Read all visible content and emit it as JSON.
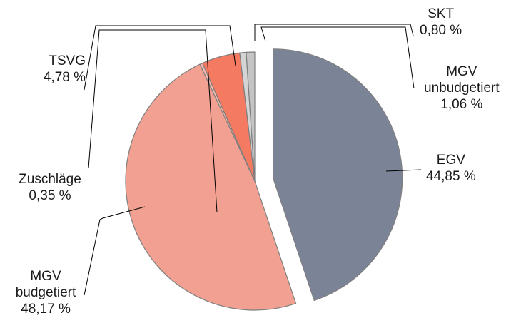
{
  "chart_data": {
    "type": "pie",
    "title": "",
    "series": [
      {
        "name": "EGV",
        "label": "EGV",
        "value": 44.85,
        "value_text": "44,85 %",
        "color": "#7b8497",
        "exploded": true
      },
      {
        "name": "MGV budgetiert",
        "label_lines": [
          "MGV",
          "budgetiert"
        ],
        "value": 48.17,
        "value_text": "48,17 %",
        "color": "#f2a091",
        "exploded": false
      },
      {
        "name": "Zuschläge",
        "label": "Zuschläge",
        "value": 0.35,
        "value_text": "0,35 %",
        "color": "#f4b8ad",
        "exploded": false
      },
      {
        "name": "TSVG",
        "label": "TSVG",
        "value": 4.78,
        "value_text": "4,78 %",
        "color": "#f47a62",
        "exploded": false
      },
      {
        "name": "SKT",
        "label": "SKT",
        "value": 0.8,
        "value_text": "0,80 %",
        "color": "#d4d4d4",
        "exploded": false
      },
      {
        "name": "MGV unbudgetiert",
        "label_lines": [
          "MGV",
          "unbudgetiert"
        ],
        "value": 1.06,
        "value_text": "1,06 %",
        "color": "#c4c4c4",
        "exploded": false
      }
    ]
  }
}
